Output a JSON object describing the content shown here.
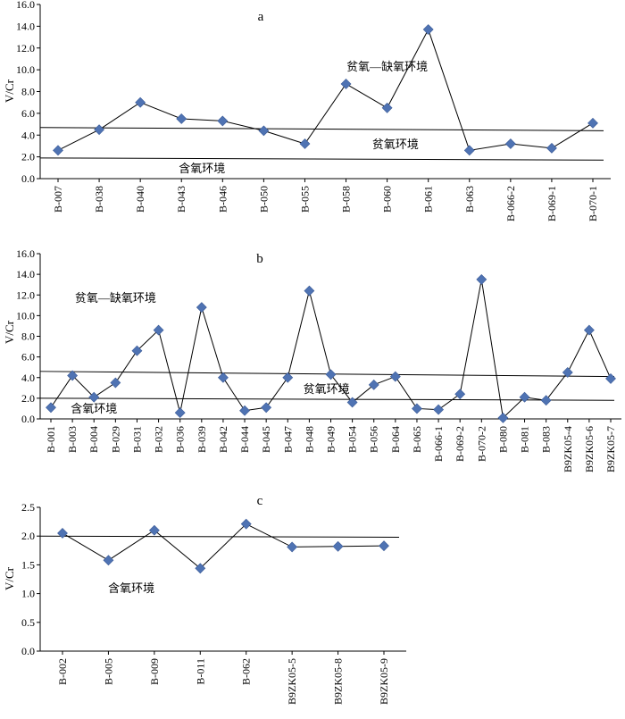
{
  "colors": {
    "marker": "#4F73B3",
    "marker_stroke": "#3A5A96",
    "line": "#000000"
  },
  "chart_data": [
    {
      "type": "line",
      "panel_label": "a",
      "title": "a",
      "ylabel": "V/Cr",
      "ylim": [
        0,
        16
      ],
      "yticks": [
        0,
        2,
        4,
        6,
        8,
        10,
        12,
        14,
        16
      ],
      "ytick_labels": [
        "0.0",
        "2.0",
        "4.0",
        "6.0",
        "8.0",
        "10.0",
        "12.0",
        "14.0",
        "16.0"
      ],
      "categories": [
        "B-007",
        "B-038",
        "B-040",
        "B-043",
        "B-046",
        "B-050",
        "B-055",
        "B-058",
        "B-060",
        "B-061",
        "B-063",
        "B-066-2",
        "B-069-1",
        "B-070-1"
      ],
      "values": [
        2.6,
        4.5,
        7.0,
        5.5,
        5.3,
        4.4,
        3.2,
        8.7,
        6.5,
        13.7,
        2.6,
        3.2,
        2.8,
        5.1
      ],
      "reference_lines": [
        {
          "name": "upper",
          "start": 4.7,
          "end": 4.4
        },
        {
          "name": "lower",
          "start": 1.9,
          "end": 1.7
        }
      ],
      "annotations": [
        {
          "text": "贫氧—缺氧环境",
          "at": 8.0,
          "zone": "upper-region"
        },
        {
          "text": "贫氧环境",
          "at": 8.2,
          "zone": "middle-band"
        },
        {
          "text": "含氧环境",
          "at": 3.5,
          "zone": "lower-band"
        }
      ]
    },
    {
      "type": "line",
      "panel_label": "b",
      "title": "b",
      "ylabel": "V/Cr",
      "ylim": [
        0,
        16
      ],
      "yticks": [
        0,
        2,
        4,
        6,
        8,
        10,
        12,
        14,
        16
      ],
      "ytick_labels": [
        "0.0",
        "2.0",
        "4.0",
        "6.0",
        "8.0",
        "10.0",
        "12.0",
        "14.0",
        "16.0"
      ],
      "categories": [
        "B-001",
        "B-003",
        "B-004",
        "B-029",
        "B-031",
        "B-032",
        "B-036",
        "B-039",
        "B-042",
        "B-044",
        "B-045",
        "B-047",
        "B-048",
        "B-049",
        "B-054",
        "B-056",
        "B-064",
        "B-065",
        "B-066-1",
        "B-069-2",
        "B-070-2",
        "B-080",
        "B-081",
        "B-083",
        "B9ZK05-4",
        "B9ZK05-6",
        "B9ZK05-7"
      ],
      "values": [
        1.1,
        4.2,
        2.1,
        3.5,
        6.6,
        8.6,
        0.6,
        10.8,
        4.0,
        0.8,
        1.1,
        4.0,
        12.4,
        4.3,
        1.6,
        3.3,
        4.1,
        1.0,
        0.9,
        2.4,
        13.5,
        0.1,
        2.1,
        1.8,
        4.5,
        8.6,
        3.9
      ],
      "reference_lines": [
        {
          "name": "upper",
          "start": 4.6,
          "end": 4.1
        },
        {
          "name": "lower",
          "start": 2.0,
          "end": 1.8
        }
      ],
      "annotations": [
        {
          "text": "贫氧—缺氧环境",
          "at": 3.0,
          "zone": "upper-region"
        },
        {
          "text": "贫氧环境",
          "at": 12.8,
          "zone": "middle-band"
        },
        {
          "text": "含氧环境",
          "at": 2.0,
          "zone": "lower-band"
        }
      ]
    },
    {
      "type": "line",
      "panel_label": "c",
      "title": "c",
      "ylabel": "V/Cr",
      "ylim": [
        0,
        2.5
      ],
      "yticks": [
        0,
        0.5,
        1.0,
        1.5,
        2.0,
        2.5
      ],
      "ytick_labels": [
        "0.0",
        "0.5",
        "1.0",
        "1.5",
        "2.0",
        "2.5"
      ],
      "categories": [
        "B-002",
        "B-005",
        "B-009",
        "B-011",
        "B-062",
        "B9ZK05-5",
        "B9ZK05-8",
        "B9ZK05-9"
      ],
      "values": [
        2.05,
        1.58,
        2.1,
        1.44,
        2.21,
        1.81,
        1.82,
        1.83
      ],
      "reference_lines": [
        {
          "name": "threshold",
          "start": 2.0,
          "end": 1.98
        }
      ],
      "annotations": [
        {
          "text": "含氧环境",
          "at": 1.5,
          "zone": "lower-band"
        }
      ]
    }
  ]
}
